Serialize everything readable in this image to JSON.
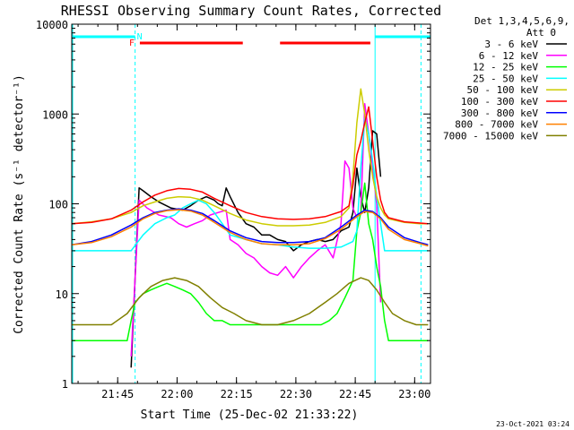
{
  "chart_data": {
    "type": "line",
    "title": "RHESSI Observing Summary Count Rates, Corrected",
    "xlabel": "Start Time (25-Dec-02 21:33:22)",
    "ylabel": "Corrected Count Rate (s⁻¹ detector⁻¹)",
    "yscale": "log",
    "ylim": [
      1,
      10000
    ],
    "xlim_minutes_after_start": [
      0,
      90.6
    ],
    "x_ticks": [
      {
        "label": "21:45",
        "minutes": 11.6
      },
      {
        "label": "22:00",
        "minutes": 26.6
      },
      {
        "label": "22:15",
        "minutes": 41.6
      },
      {
        "label": "22:30",
        "minutes": 56.6
      },
      {
        "label": "22:45",
        "minutes": 71.6
      },
      {
        "label": "23:00",
        "minutes": 86.6
      }
    ],
    "y_ticks": [
      {
        "label": "1",
        "value": 1
      },
      {
        "label": "10",
        "value": 10
      },
      {
        "label": "100",
        "value": 100
      },
      {
        "label": "1000",
        "value": 1000
      },
      {
        "label": "10000",
        "value": 10000
      }
    ],
    "legend_header": [
      "Det 1,3,4,5,6,9,",
      "Att 0"
    ],
    "series": [
      {
        "name": "3 - 6 keV",
        "color": "#000000",
        "x": [
          3,
          8,
          11,
          14,
          15,
          17,
          18,
          20,
          22,
          25,
          28,
          30,
          32,
          34,
          36,
          37,
          38,
          39,
          40,
          42,
          44,
          46,
          48,
          50,
          52,
          54,
          56,
          58,
          60,
          62,
          64,
          66,
          68,
          70,
          71,
          72,
          73,
          74,
          75,
          76,
          77,
          78,
          79,
          80
        ],
        "y": [
          null,
          null,
          null,
          null,
          1.5,
          150,
          140,
          120,
          105,
          90,
          85,
          95,
          110,
          120,
          110,
          100,
          95,
          150,
          120,
          80,
          60,
          55,
          45,
          45,
          40,
          38,
          30,
          35,
          38,
          40,
          38,
          40,
          50,
          55,
          80,
          250,
          120,
          80,
          150,
          650,
          600,
          200,
          null,
          null
        ]
      },
      {
        "name": "6 - 12 keV",
        "color": "#ff00ff",
        "x": [
          3,
          8,
          11,
          14,
          15,
          17,
          19,
          22,
          25,
          27,
          29,
          31,
          33,
          35,
          37,
          39,
          40,
          42,
          44,
          46,
          48,
          50,
          52,
          54,
          56,
          58,
          60,
          62,
          64,
          66,
          68,
          69,
          70,
          71,
          72,
          73,
          74,
          75,
          76,
          77,
          78,
          79,
          80
        ],
        "y": [
          null,
          null,
          null,
          null,
          2,
          110,
          90,
          75,
          70,
          60,
          55,
          60,
          65,
          75,
          80,
          85,
          40,
          35,
          28,
          25,
          20,
          17,
          16,
          20,
          15,
          20,
          25,
          30,
          35,
          25,
          60,
          300,
          250,
          90,
          70,
          80,
          1300,
          600,
          250,
          100,
          8,
          null,
          null
        ]
      },
      {
        "name": "12 - 25 keV",
        "color": "#00ff00",
        "x": [
          0,
          5,
          10,
          14,
          15,
          16,
          18,
          20,
          22,
          24,
          26,
          28,
          30,
          32,
          34,
          36,
          38,
          40,
          44,
          48,
          52,
          56,
          60,
          63,
          65,
          67,
          69,
          71,
          72,
          73,
          74,
          75,
          76,
          77,
          78,
          79,
          80,
          83,
          86,
          90
        ],
        "y": [
          3,
          3,
          3,
          3,
          5,
          8,
          10,
          11,
          12,
          13,
          12,
          11,
          10,
          8,
          6,
          5,
          5,
          4.5,
          4.5,
          4.5,
          4.5,
          4.5,
          4.5,
          4.5,
          5,
          6,
          9,
          14,
          50,
          80,
          170,
          60,
          40,
          20,
          12,
          5,
          3,
          3,
          3,
          3
        ]
      },
      {
        "name": "25 - 50 keV",
        "color": "#00ffff",
        "x": [
          0,
          5,
          10,
          15,
          18,
          21,
          24,
          26,
          28,
          30,
          32,
          34,
          36,
          38,
          40,
          44,
          48,
          52,
          56,
          60,
          64,
          68,
          71,
          72,
          73,
          74,
          75,
          76,
          77,
          78,
          79,
          80,
          84,
          88,
          90
        ],
        "y": [
          30,
          30,
          30,
          30,
          45,
          60,
          70,
          75,
          90,
          100,
          110,
          100,
          80,
          60,
          45,
          40,
          36,
          35,
          33,
          32,
          32,
          33,
          38,
          50,
          250,
          900,
          600,
          300,
          120,
          60,
          30,
          30,
          30,
          30,
          30
        ]
      },
      {
        "name": "50 - 100 keV",
        "color": "#cccc00",
        "x": [
          0,
          5,
          10,
          15,
          18,
          21,
          24,
          27,
          30,
          33,
          36,
          40,
          44,
          48,
          52,
          56,
          60,
          64,
          68,
          70,
          71,
          72,
          73,
          74,
          75,
          76,
          77,
          78,
          79,
          80,
          84,
          88,
          90
        ],
        "y": [
          60,
          63,
          68,
          80,
          95,
          105,
          115,
          120,
          118,
          110,
          95,
          78,
          66,
          60,
          57,
          57,
          58,
          62,
          72,
          90,
          200,
          800,
          1900,
          1000,
          400,
          200,
          120,
          90,
          75,
          68,
          62,
          60,
          60
        ]
      },
      {
        "name": "100 - 300 keV",
        "color": "#ff0000",
        "x": [
          0,
          5,
          10,
          15,
          18,
          21,
          24,
          27,
          30,
          33,
          36,
          40,
          44,
          48,
          52,
          56,
          60,
          64,
          68,
          70,
          71,
          72,
          73,
          74,
          75,
          76,
          77,
          78,
          79,
          80,
          84,
          88,
          90
        ],
        "y": [
          60,
          62,
          68,
          85,
          105,
          125,
          140,
          148,
          145,
          135,
          115,
          95,
          80,
          72,
          68,
          67,
          68,
          72,
          82,
          95,
          160,
          350,
          500,
          800,
          1200,
          500,
          200,
          110,
          80,
          70,
          63,
          61,
          60
        ]
      },
      {
        "name": "300 - 800 keV",
        "color": "#0000ff",
        "x": [
          0,
          5,
          10,
          15,
          18,
          21,
          24,
          27,
          30,
          33,
          36,
          40,
          44,
          48,
          52,
          56,
          60,
          64,
          68,
          72,
          74,
          76,
          78,
          80,
          84,
          88,
          90
        ],
        "y": [
          35,
          38,
          45,
          58,
          70,
          80,
          85,
          88,
          85,
          78,
          65,
          50,
          42,
          38,
          37,
          37,
          38,
          42,
          55,
          75,
          85,
          82,
          70,
          55,
          42,
          37,
          35
        ]
      },
      {
        "name": "800 - 7000 keV",
        "color": "#ff8000",
        "x": [
          0,
          5,
          10,
          15,
          18,
          21,
          24,
          27,
          30,
          33,
          36,
          40,
          44,
          48,
          52,
          56,
          60,
          64,
          68,
          72,
          74,
          76,
          78,
          80,
          84,
          88,
          90
        ],
        "y": [
          35,
          37,
          43,
          55,
          68,
          78,
          84,
          86,
          83,
          75,
          62,
          48,
          40,
          36,
          35,
          35,
          36,
          41,
          52,
          72,
          82,
          80,
          68,
          52,
          40,
          36,
          34
        ]
      },
      {
        "name": "7000 - 15000 keV",
        "color": "#808000",
        "x": [
          0,
          5,
          10,
          14,
          17,
          20,
          23,
          26,
          29,
          32,
          35,
          38,
          41,
          44,
          48,
          52,
          56,
          60,
          64,
          67,
          70,
          73,
          75,
          77,
          79,
          81,
          84,
          87,
          90
        ],
        "y": [
          4.5,
          4.5,
          4.5,
          6,
          9,
          12,
          14,
          15,
          14,
          12,
          9,
          7,
          6,
          5,
          4.5,
          4.5,
          5,
          6,
          8,
          10,
          13,
          15,
          14,
          11,
          8,
          6,
          5,
          4.5,
          4.5
        ]
      }
    ],
    "annotations": {
      "flare_flag_label": "F",
      "flare_intervals_minutes": [
        [
          17.2,
          43.2
        ],
        [
          52.6,
          75.4
        ]
      ],
      "night_flag_label": "N",
      "night_intervals_minutes": [
        [
          0,
          16.0
        ],
        [
          76.6,
          90.6
        ]
      ],
      "spacecraft_night_boundaries_minutes": [
        16.0,
        76.6,
        88.2
      ]
    }
  },
  "footer": {
    "generated_timestamp": "23-Oct-2021 03:24"
  }
}
